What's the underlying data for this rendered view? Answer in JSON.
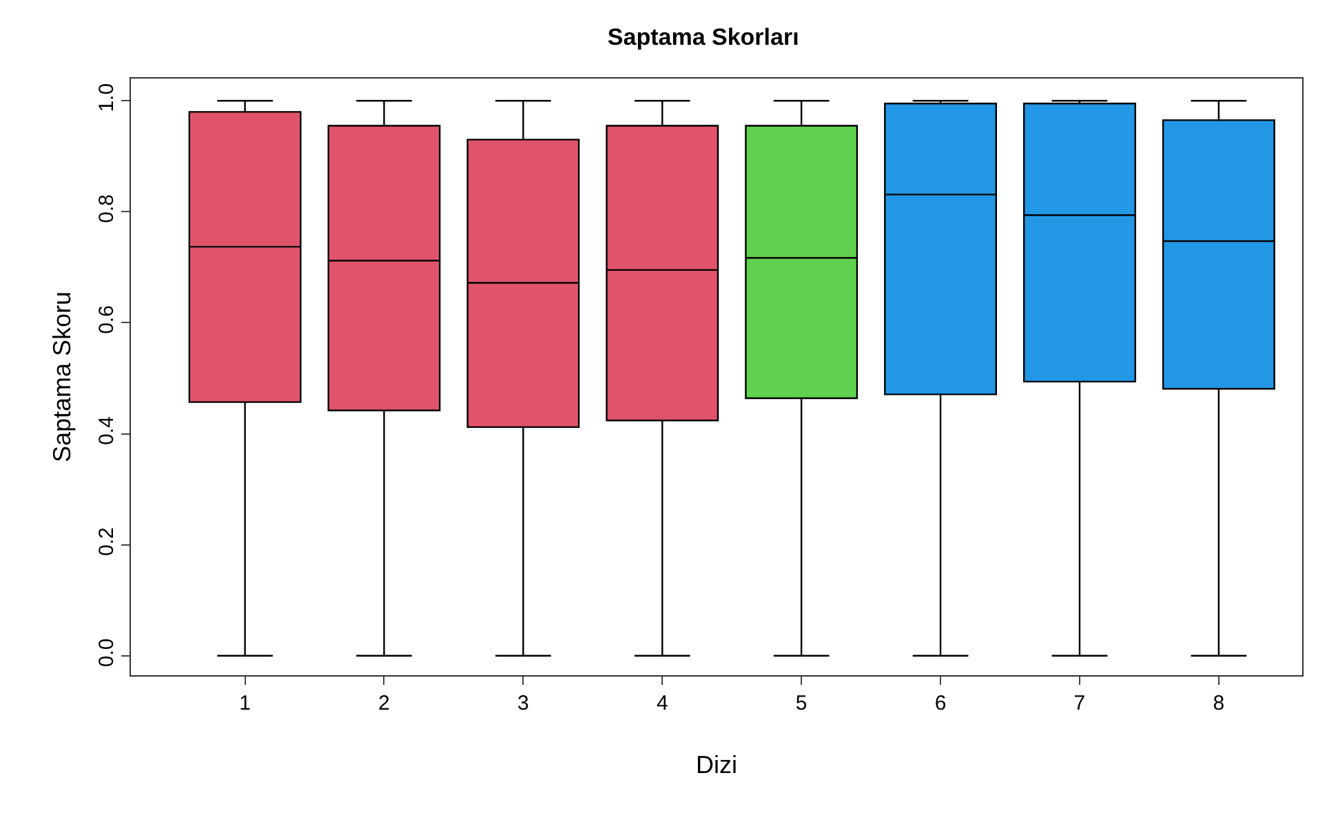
{
  "chart_data": {
    "type": "box",
    "title": "Saptama Skorları",
    "xlabel": "Dizi",
    "ylabel": "Saptama Skoru",
    "categories": [
      "1",
      "2",
      "3",
      "4",
      "5",
      "6",
      "7",
      "8"
    ],
    "colors": [
      "#df536b",
      "#df536b",
      "#df536b",
      "#df536b",
      "#61d04f",
      "#2297e6",
      "#2297e6",
      "#2297e6"
    ],
    "boxes": [
      {
        "low": 0,
        "q1": 0.457,
        "median": 0.737,
        "q3": 0.98,
        "high": 1
      },
      {
        "low": 0,
        "q1": 0.442,
        "median": 0.712,
        "q3": 0.955,
        "high": 1
      },
      {
        "low": 0,
        "q1": 0.412,
        "median": 0.672,
        "q3": 0.93,
        "high": 1
      },
      {
        "low": 0,
        "q1": 0.424,
        "median": 0.695,
        "q3": 0.955,
        "high": 1
      },
      {
        "low": 0,
        "q1": 0.464,
        "median": 0.717,
        "q3": 0.955,
        "high": 1
      },
      {
        "low": 0,
        "q1": 0.471,
        "median": 0.831,
        "q3": 0.995,
        "high": 1
      },
      {
        "low": 0,
        "q1": 0.494,
        "median": 0.794,
        "q3": 0.995,
        "high": 1
      },
      {
        "low": 0,
        "q1": 0.481,
        "median": 0.747,
        "q3": 0.965,
        "high": 1
      }
    ],
    "ylim": [
      -0.035,
      1.04
    ],
    "yticks": [
      {
        "value": 0,
        "label": "0.0"
      },
      {
        "value": 0.2,
        "label": "0.2"
      },
      {
        "value": 0.4,
        "label": "0.4"
      },
      {
        "value": 0.6,
        "label": "0.6"
      },
      {
        "value": 0.8,
        "label": "0.8"
      },
      {
        "value": 1,
        "label": "1.0"
      }
    ],
    "tick_labels": true
  }
}
